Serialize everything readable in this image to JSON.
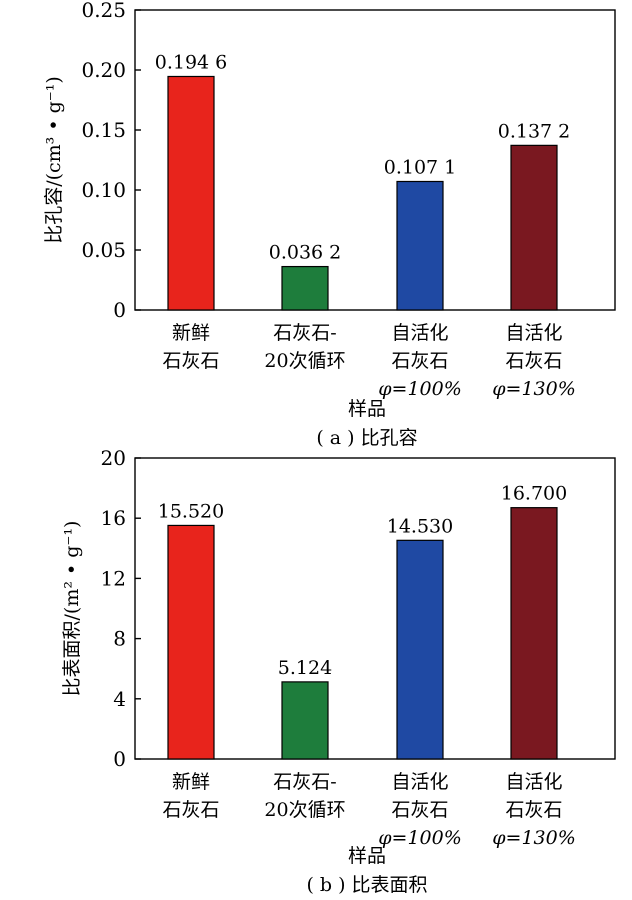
{
  "chart_data": [
    {
      "type": "bar",
      "categories": [
        [
          "新鲜",
          "石灰石"
        ],
        [
          "石灰石-",
          "20次循环"
        ],
        [
          "自活化",
          "石灰石",
          "φ=100%"
        ],
        [
          "自活化",
          "石灰石",
          "φ=130%"
        ]
      ],
      "values": [
        0.1946,
        0.0362,
        0.1071,
        0.1372
      ],
      "value_labels": [
        "0.194 6",
        "0.036 2",
        "0.107 1",
        "0.137 2"
      ],
      "ylabel": "比孔容/(cm³ • g⁻¹)",
      "xlabel": "样品",
      "caption": "( a ) 比孔容",
      "ylim": [
        0,
        0.25
      ],
      "yticks": [
        "0",
        "0.05",
        "0.10",
        "0.15",
        "0.20",
        "0.25"
      ],
      "grid": false,
      "colors": [
        "#e8241c",
        "#1e7d3c",
        "#1f49a3",
        "#7a1820"
      ]
    },
    {
      "type": "bar",
      "categories": [
        [
          "新鲜",
          "石灰石"
        ],
        [
          "石灰石-",
          "20次循环"
        ],
        [
          "自活化",
          "石灰石",
          "φ=100%"
        ],
        [
          "自活化",
          "石灰石",
          "φ=130%"
        ]
      ],
      "values": [
        15.52,
        5.124,
        14.53,
        16.7
      ],
      "value_labels": [
        "15.520",
        "5.124",
        "14.530",
        "16.700"
      ],
      "ylabel": "比表面积/(m² • g⁻¹)",
      "xlabel": "样品",
      "caption": "( b ) 比表面积",
      "ylim": [
        0,
        20
      ],
      "yticks": [
        "0",
        "4",
        "8",
        "12",
        "16",
        "20"
      ],
      "grid": false,
      "colors": [
        "#e8241c",
        "#1e7d3c",
        "#1f49a3",
        "#7a1820"
      ]
    }
  ]
}
